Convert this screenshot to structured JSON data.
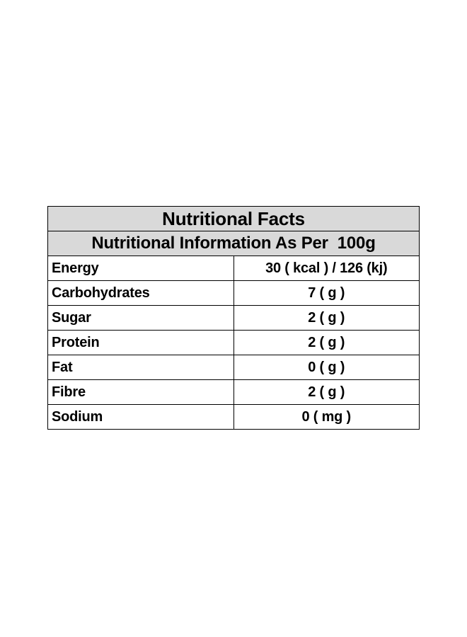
{
  "table": {
    "title": "Nutritional Facts",
    "subtitle": "Nutritional Information As Per  100g",
    "rows": [
      {
        "nutrient": "Energy",
        "value": "30 ( kcal ) / 126 (kj)"
      },
      {
        "nutrient": "Carbohydrates",
        "value": "7 ( g )"
      },
      {
        "nutrient": "Sugar",
        "value": "2 ( g )"
      },
      {
        "nutrient": "Protein",
        "value": "2 ( g )"
      },
      {
        "nutrient": "Fat",
        "value": "0 ( g )"
      },
      {
        "nutrient": "Fibre",
        "value": "2 ( g )"
      },
      {
        "nutrient": "Sodium",
        "value": "0 ( mg )"
      }
    ]
  }
}
